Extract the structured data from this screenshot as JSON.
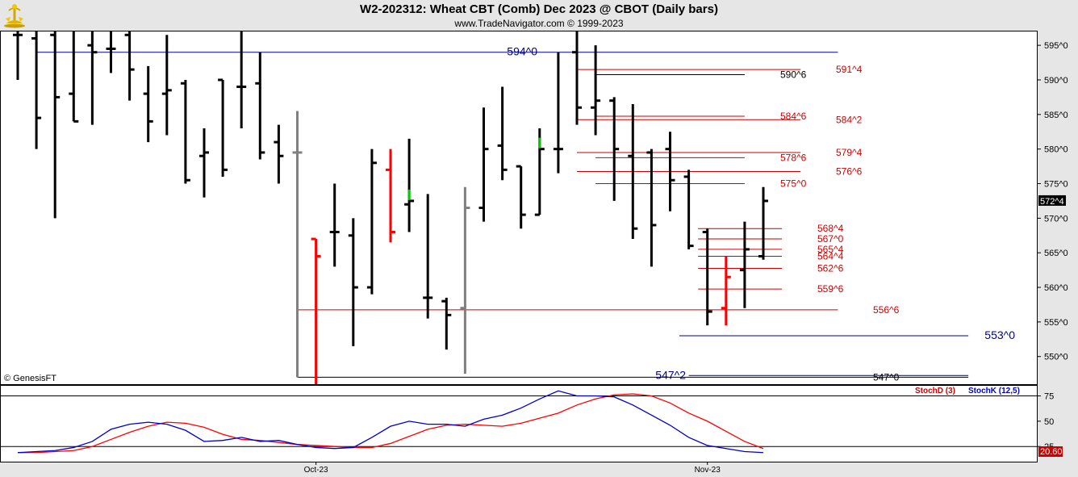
{
  "header": {
    "title": "W2-202312:  Wheat CBT (Comb) Dec 2023 @ CBOT  (Daily bars)",
    "subtitle": "www.TradeNavigator.com © 1999-2023",
    "logo_icon": "gold-trophy-logo"
  },
  "watermark": "© GenesisFT",
  "colors": {
    "up_bar": "#000000",
    "down_bar_red": "#ff0000",
    "gray_bar": "#808080",
    "green_tick": "#00cc00",
    "blue_line": "#00008b",
    "red_line": "#cc0000",
    "black_line": "#000000",
    "stoch_d": "#ff0000",
    "stoch_k": "#0000cc",
    "axis_bg": "#e6e6e6"
  },
  "chart_data": [
    {
      "type": "ohlc",
      "title": "W2-202312:  Wheat CBT (Comb) Dec 2023 @ CBOT  (Daily bars)",
      "ylim": [
        546,
        597
      ],
      "y_ticks": [
        "550^0",
        "555^0",
        "560^0",
        "565^0",
        "570^0",
        "575^0",
        "580^0",
        "585^0",
        "590^0",
        "595^0"
      ],
      "y_tick_values": [
        550,
        555,
        560,
        565,
        570,
        575,
        580,
        585,
        590,
        595
      ],
      "x_labels": [
        "Oct-23",
        "Nov-23"
      ],
      "x_label_bar_index": [
        16,
        37
      ],
      "last_price_label": "572^4",
      "last_price": 572.5,
      "bars": [
        {
          "h": 598,
          "l": 590,
          "o": 596.5,
          "c": 596.5,
          "color": "black"
        },
        {
          "h": 598,
          "l": 580,
          "o": 596,
          "c": 584.5,
          "color": "black"
        },
        {
          "h": 598,
          "l": 570,
          "o": 596.5,
          "c": 587.5,
          "color": "black"
        },
        {
          "h": 598,
          "l": 584,
          "o": 588,
          "c": 584,
          "color": "black"
        },
        {
          "h": 598,
          "l": 583.5,
          "o": 595,
          "c": 594,
          "color": "black"
        },
        {
          "h": 598,
          "l": 591,
          "o": 594.5,
          "c": 594.5,
          "color": "black"
        },
        {
          "h": 598,
          "l": 587,
          "o": 596.5,
          "c": 591.5,
          "color": "black"
        },
        {
          "h": 592,
          "l": 581,
          "o": 588,
          "c": 584,
          "color": "black"
        },
        {
          "h": 596.5,
          "l": 582,
          "o": 588,
          "c": 588.5,
          "color": "black"
        },
        {
          "h": 590,
          "l": 575,
          "o": 589.5,
          "c": 575.5,
          "color": "black"
        },
        {
          "h": 583,
          "l": 573,
          "o": 579,
          "c": 579.5,
          "color": "black"
        },
        {
          "h": 590,
          "l": 576,
          "o": 590,
          "c": 577,
          "color": "black"
        },
        {
          "h": 597,
          "l": 583,
          "o": 589,
          "c": 589,
          "color": "black"
        },
        {
          "h": 594,
          "l": 578.5,
          "o": 589.5,
          "c": 579.5,
          "color": "black"
        },
        {
          "h": 583.5,
          "l": 575,
          "o": 581,
          "c": 579,
          "color": "black"
        },
        {
          "h": 585.5,
          "l": 547,
          "o": 579.5,
          "c": 579.5,
          "color": "gray"
        },
        {
          "h": 567,
          "l": 546,
          "o": 567,
          "c": 564.5,
          "color": "red"
        },
        {
          "h": 575,
          "l": 563,
          "o": 568,
          "c": 568,
          "color": "black"
        },
        {
          "h": 570,
          "l": 551.5,
          "o": 567.5,
          "c": 560,
          "color": "black"
        },
        {
          "h": 580,
          "l": 559,
          "o": 560,
          "c": 578,
          "color": "black"
        },
        {
          "h": 580,
          "l": 566.5,
          "o": 577,
          "c": 568,
          "color": "red"
        },
        {
          "h": 581.5,
          "l": 568,
          "o": 572,
          "c": 572.5,
          "color": "black",
          "tick": "green"
        },
        {
          "h": 573.5,
          "l": 555.5,
          "o": 558.5,
          "c": 558.5,
          "color": "black"
        },
        {
          "h": 558.5,
          "l": 551,
          "o": 558,
          "c": 556,
          "color": "black"
        },
        {
          "h": 574.5,
          "l": 547.5,
          "o": 557,
          "c": 571.5,
          "color": "gray"
        },
        {
          "h": 586,
          "l": 569.5,
          "o": 571.5,
          "c": 580,
          "color": "black"
        },
        {
          "h": 589,
          "l": 575.5,
          "o": 580.5,
          "c": 577,
          "color": "black"
        },
        {
          "h": 577.5,
          "l": 568.5,
          "o": 577.5,
          "c": 570.5,
          "color": "black"
        },
        {
          "h": 583,
          "l": 570.5,
          "o": 570.5,
          "c": 580,
          "color": "black",
          "tick": "green"
        },
        {
          "h": 594,
          "l": 576.5,
          "o": 580,
          "c": 580,
          "color": "black"
        },
        {
          "h": 597.5,
          "l": 583.5,
          "o": 594,
          "c": 586,
          "color": "black"
        },
        {
          "h": 595,
          "l": 582,
          "o": 586,
          "c": 587,
          "color": "black"
        },
        {
          "h": 587.5,
          "l": 572.5,
          "o": 587,
          "c": 580,
          "color": "black"
        },
        {
          "h": 586.5,
          "l": 567,
          "o": 579,
          "c": 568.5,
          "color": "black"
        },
        {
          "h": 580,
          "l": 563,
          "o": 579.5,
          "c": 569,
          "color": "black"
        },
        {
          "h": 582.5,
          "l": 571,
          "o": 580,
          "c": 575.5,
          "color": "black"
        },
        {
          "h": 577,
          "l": 565.5,
          "o": 576,
          "c": 566,
          "color": "black"
        },
        {
          "h": 568.5,
          "l": 554.5,
          "o": 568,
          "c": 556.5,
          "color": "black"
        },
        {
          "h": 564.5,
          "l": 554.5,
          "o": 557,
          "c": 561.5,
          "color": "red"
        },
        {
          "h": 569.5,
          "l": 557,
          "o": 562.5,
          "c": 565.5,
          "color": "black"
        },
        {
          "h": 574.5,
          "l": 564,
          "o": 564.5,
          "c": 572.5,
          "color": "black"
        }
      ],
      "levels": [
        {
          "label": "594^0",
          "value": 594,
          "color": "blue",
          "x0": 1,
          "x1": 44,
          "label_side": "left"
        },
        {
          "label": "591^4",
          "value": 591.5,
          "color": "red",
          "x0": 30,
          "x1": 42
        },
        {
          "label": "590^6",
          "value": 590.75,
          "color": "black",
          "x0": 31,
          "x1": 39
        },
        {
          "label": "584^6",
          "value": 584.75,
          "color": "red",
          "x0": 31,
          "x1": 39
        },
        {
          "label": "584^2",
          "value": 584.25,
          "color": "red",
          "x0": 30,
          "x1": 42
        },
        {
          "label": "579^4",
          "value": 579.5,
          "color": "red",
          "x0": 30,
          "x1": 42
        },
        {
          "label": "578^6",
          "value": 578.75,
          "color": "red",
          "x0": 31,
          "x1": 39
        },
        {
          "label": "576^6",
          "value": 576.75,
          "color": "red",
          "x0": 30,
          "x1": 42
        },
        {
          "label": "575^0",
          "value": 575,
          "color": "red",
          "x0": 31,
          "x1": 39
        },
        {
          "label": "568^4",
          "value": 568.5,
          "color": "red",
          "x0": 36.5,
          "x1": 41
        },
        {
          "label": "567^0",
          "value": 567,
          "color": "red",
          "x0": 36.5,
          "x1": 41
        },
        {
          "label": "565^4",
          "value": 565.5,
          "color": "red",
          "x0": 36.5,
          "x1": 41
        },
        {
          "label": "564^4",
          "value": 564.5,
          "color": "red",
          "x0": 36.5,
          "x1": 41
        },
        {
          "label": "562^6",
          "value": 562.75,
          "color": "red",
          "x0": 36.5,
          "x1": 41
        },
        {
          "label": "559^6",
          "value": 559.75,
          "color": "red",
          "x0": 36.5,
          "x1": 41
        },
        {
          "label": "556^6",
          "value": 556.75,
          "color": "red",
          "x0": 15,
          "x1": 44
        },
        {
          "label": "553^0",
          "value": 553,
          "color": "blue",
          "x0": 35.5,
          "x1": 51
        },
        {
          "label": "547^2",
          "value": 547.25,
          "color": "blue",
          "x0": 36,
          "x1": 51,
          "label_side": "left"
        },
        {
          "label": "547^0",
          "value": 547,
          "color": "black",
          "x0": 15,
          "x1": 51
        }
      ]
    },
    {
      "type": "line",
      "series_labels": [
        "StochD (3)",
        "StochK (12,5)"
      ],
      "ylim": [
        10,
        85
      ],
      "y_ticks": [
        "75",
        "50",
        "25"
      ],
      "y_tick_values": [
        75,
        50,
        25
      ],
      "last_value_label": "20.60",
      "guide_lines": [
        75,
        25
      ],
      "series": [
        {
          "name": "StochD (3)",
          "color": "red",
          "values": [
            19,
            19,
            20,
            21,
            25,
            32,
            39,
            45,
            49,
            48,
            44,
            37,
            32,
            31,
            29,
            27,
            26,
            25,
            24,
            24,
            28,
            35,
            42,
            46,
            47,
            46,
            45,
            48,
            53,
            58,
            66,
            72,
            76,
            77,
            75,
            68,
            58,
            50,
            40,
            30,
            23
          ]
        },
        {
          "name": "StochK (12,5)",
          "color": "blue",
          "values": [
            19,
            20,
            21,
            24,
            30,
            42,
            47,
            49,
            47,
            41,
            30,
            31,
            34,
            30,
            31,
            27,
            24,
            23,
            24,
            34,
            45,
            50,
            47,
            47,
            45,
            52,
            56,
            63,
            72,
            80,
            75,
            75,
            74,
            66,
            56,
            46,
            34,
            26,
            23,
            20,
            19
          ]
        }
      ]
    }
  ]
}
